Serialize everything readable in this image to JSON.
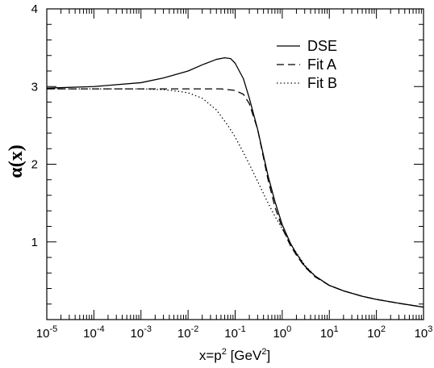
{
  "chart_data": {
    "type": "line",
    "xscale": "log",
    "xlim": [
      1e-05,
      1000
    ],
    "ylim": [
      0,
      4
    ],
    "yticks": [
      0,
      1,
      2,
      3,
      4
    ],
    "ytick_labels": [
      "",
      "1",
      "2",
      "3",
      "4"
    ],
    "xtick_exponents": [
      "-5",
      "-4",
      "-3",
      "-2",
      "-1",
      "0",
      "1",
      "2",
      "3"
    ],
    "xtick_base": "10",
    "xlabel_main": "x=p",
    "xlabel_sup1": "2",
    "xlabel_mid": " [GeV",
    "xlabel_sup2": "2",
    "xlabel_end": "]",
    "ylabel": "α(x)",
    "legend_position": "top-right",
    "series": [
      {
        "name": "DSE",
        "dash": "solid",
        "x": [
          1e-05,
          0.0001,
          0.001,
          0.003,
          0.01,
          0.02,
          0.04,
          0.06,
          0.08,
          0.1,
          0.15,
          0.2,
          0.3,
          0.5,
          0.7,
          1,
          1.5,
          2,
          3,
          5,
          10,
          20,
          50,
          100,
          300,
          1000
        ],
        "y": [
          2.98,
          3.0,
          3.05,
          3.11,
          3.2,
          3.28,
          3.35,
          3.37,
          3.36,
          3.3,
          3.1,
          2.85,
          2.45,
          1.85,
          1.52,
          1.22,
          0.98,
          0.85,
          0.69,
          0.56,
          0.44,
          0.37,
          0.3,
          0.26,
          0.21,
          0.16
        ]
      },
      {
        "name": "Fit A",
        "dash": "dashed",
        "x": [
          1e-05,
          0.001,
          0.01,
          0.05,
          0.1,
          0.15,
          0.2,
          0.3,
          0.5,
          0.7,
          1,
          1.5,
          2,
          3,
          5,
          10,
          20,
          50,
          100,
          300,
          1000
        ],
        "y": [
          2.97,
          2.97,
          2.97,
          2.97,
          2.95,
          2.9,
          2.78,
          2.45,
          1.8,
          1.45,
          1.18,
          0.95,
          0.83,
          0.68,
          0.55,
          0.44,
          0.37,
          0.3,
          0.26,
          0.21,
          0.16
        ]
      },
      {
        "name": "Fit B",
        "dash": "dotted",
        "x": [
          1e-05,
          0.0001,
          0.001,
          0.003,
          0.006,
          0.01,
          0.02,
          0.04,
          0.07,
          0.1,
          0.15,
          0.2,
          0.3,
          0.5,
          0.7,
          1,
          1.5,
          2,
          3,
          5,
          10,
          20,
          50,
          100,
          300,
          1000
        ],
        "y": [
          2.97,
          2.97,
          2.97,
          2.96,
          2.94,
          2.92,
          2.85,
          2.7,
          2.5,
          2.35,
          2.15,
          2.0,
          1.78,
          1.5,
          1.33,
          1.17,
          0.97,
          0.86,
          0.7,
          0.56,
          0.44,
          0.37,
          0.3,
          0.26,
          0.21,
          0.16
        ]
      }
    ]
  }
}
